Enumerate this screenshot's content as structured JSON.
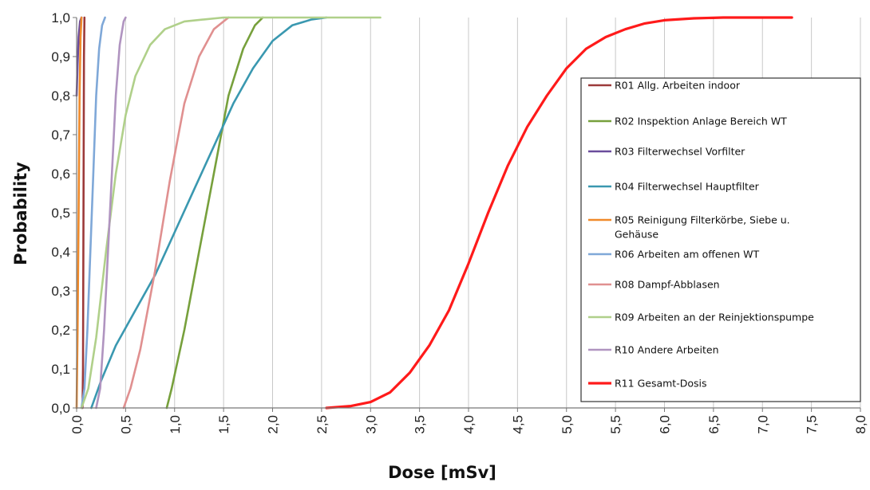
{
  "chart_data": {
    "type": "line",
    "xlabel": "Dose [mSv]",
    "ylabel": "Probability",
    "xlim": [
      0,
      8
    ],
    "ylim": [
      0,
      1
    ],
    "x_ticks": [
      "0,0",
      "0,5",
      "1,0",
      "1,5",
      "2,0",
      "2,5",
      "3,0",
      "3,5",
      "4,0",
      "4,5",
      "5,0",
      "5,5",
      "6,0",
      "6,5",
      "7,0",
      "7,5",
      "8,0"
    ],
    "y_ticks": [
      "0,0",
      "0,1",
      "0,2",
      "0,3",
      "0,4",
      "0,5",
      "0,6",
      "0,7",
      "0,8",
      "0,9",
      "1,0"
    ],
    "grid": "vertical",
    "legend_position": "right",
    "series": [
      {
        "name": "R01 Allg. Arbeiten indoor",
        "color": "#9c3a3a",
        "x": [
          0.06,
          0.065,
          0.07,
          0.075,
          0.08
        ],
        "y": [
          0,
          0.1,
          0.5,
          0.9,
          1.0
        ]
      },
      {
        "name": "R02 Inspektion Anlage Bereich WT",
        "color": "#77a03c",
        "x": [
          0.92,
          0.97,
          1.1,
          1.25,
          1.4,
          1.55,
          1.7,
          1.82,
          1.9
        ],
        "y": [
          0,
          0.05,
          0.2,
          0.4,
          0.6,
          0.8,
          0.92,
          0.98,
          1.0
        ]
      },
      {
        "name": "R03 Filterwechsel Vorfilter",
        "color": "#6a4c9c",
        "x": [
          0.0,
          0.01,
          0.02,
          0.035,
          0.05
        ],
        "y": [
          0.8,
          0.88,
          0.95,
          0.99,
          1.0
        ]
      },
      {
        "name": "R04 Filterwechsel Hauptfilter",
        "color": "#3a98b0",
        "x": [
          0.15,
          0.25,
          0.4,
          0.6,
          0.8,
          1.0,
          1.2,
          1.4,
          1.6,
          1.8,
          2.0,
          2.2,
          2.4,
          2.55
        ],
        "y": [
          0,
          0.07,
          0.16,
          0.25,
          0.34,
          0.45,
          0.56,
          0.67,
          0.78,
          0.87,
          0.94,
          0.98,
          0.995,
          1.0
        ]
      },
      {
        "name": "R05 Reinigung Filterkörbe, Siebe u. Gehäuse",
        "color": "#f08a2a",
        "x": [
          0.0,
          0.01,
          0.02,
          0.03,
          0.04,
          0.05
        ],
        "y": [
          0,
          0.2,
          0.5,
          0.8,
          0.95,
          1.0
        ]
      },
      {
        "name": "R06 Arbeiten am offenen WT",
        "color": "#7fa8d8",
        "x": [
          0.05,
          0.08,
          0.11,
          0.14,
          0.17,
          0.2,
          0.23,
          0.26,
          0.29
        ],
        "y": [
          0,
          0.05,
          0.2,
          0.4,
          0.6,
          0.8,
          0.92,
          0.98,
          1.0
        ]
      },
      {
        "name": "R08 Dampf-Abblasen",
        "color": "#e09090",
        "x": [
          0.48,
          0.55,
          0.65,
          0.8,
          0.95,
          1.1,
          1.25,
          1.4,
          1.5,
          1.55
        ],
        "y": [
          0,
          0.05,
          0.15,
          0.35,
          0.58,
          0.78,
          0.9,
          0.97,
          0.99,
          1.0
        ]
      },
      {
        "name": "R09 Arbeiten an der Reinjektionspumpe",
        "color": "#b0d08a",
        "x": [
          0.05,
          0.12,
          0.2,
          0.3,
          0.4,
          0.5,
          0.6,
          0.75,
          0.9,
          1.1,
          1.3,
          1.5,
          2.0,
          3.1
        ],
        "y": [
          0,
          0.05,
          0.18,
          0.4,
          0.6,
          0.75,
          0.85,
          0.93,
          0.97,
          0.99,
          0.995,
          1.0,
          1.0,
          1.0
        ]
      },
      {
        "name": "R10 Andere Arbeiten",
        "color": "#b094c0",
        "x": [
          0.2,
          0.24,
          0.28,
          0.32,
          0.36,
          0.4,
          0.44,
          0.48,
          0.5
        ],
        "y": [
          0,
          0.05,
          0.2,
          0.4,
          0.6,
          0.8,
          0.93,
          0.99,
          1.0
        ]
      },
      {
        "name": "R11 Gesamt-Dosis",
        "color": "#ff1a1a",
        "x": [
          2.55,
          2.8,
          3.0,
          3.2,
          3.4,
          3.6,
          3.8,
          4.0,
          4.2,
          4.4,
          4.6,
          4.8,
          5.0,
          5.2,
          5.4,
          5.6,
          5.8,
          6.0,
          6.3,
          6.6,
          7.0,
          7.3
        ],
        "y": [
          0,
          0.005,
          0.015,
          0.04,
          0.09,
          0.16,
          0.25,
          0.37,
          0.5,
          0.62,
          0.72,
          0.8,
          0.87,
          0.92,
          0.95,
          0.97,
          0.985,
          0.993,
          0.998,
          1.0,
          1.0,
          1.0
        ]
      }
    ]
  }
}
